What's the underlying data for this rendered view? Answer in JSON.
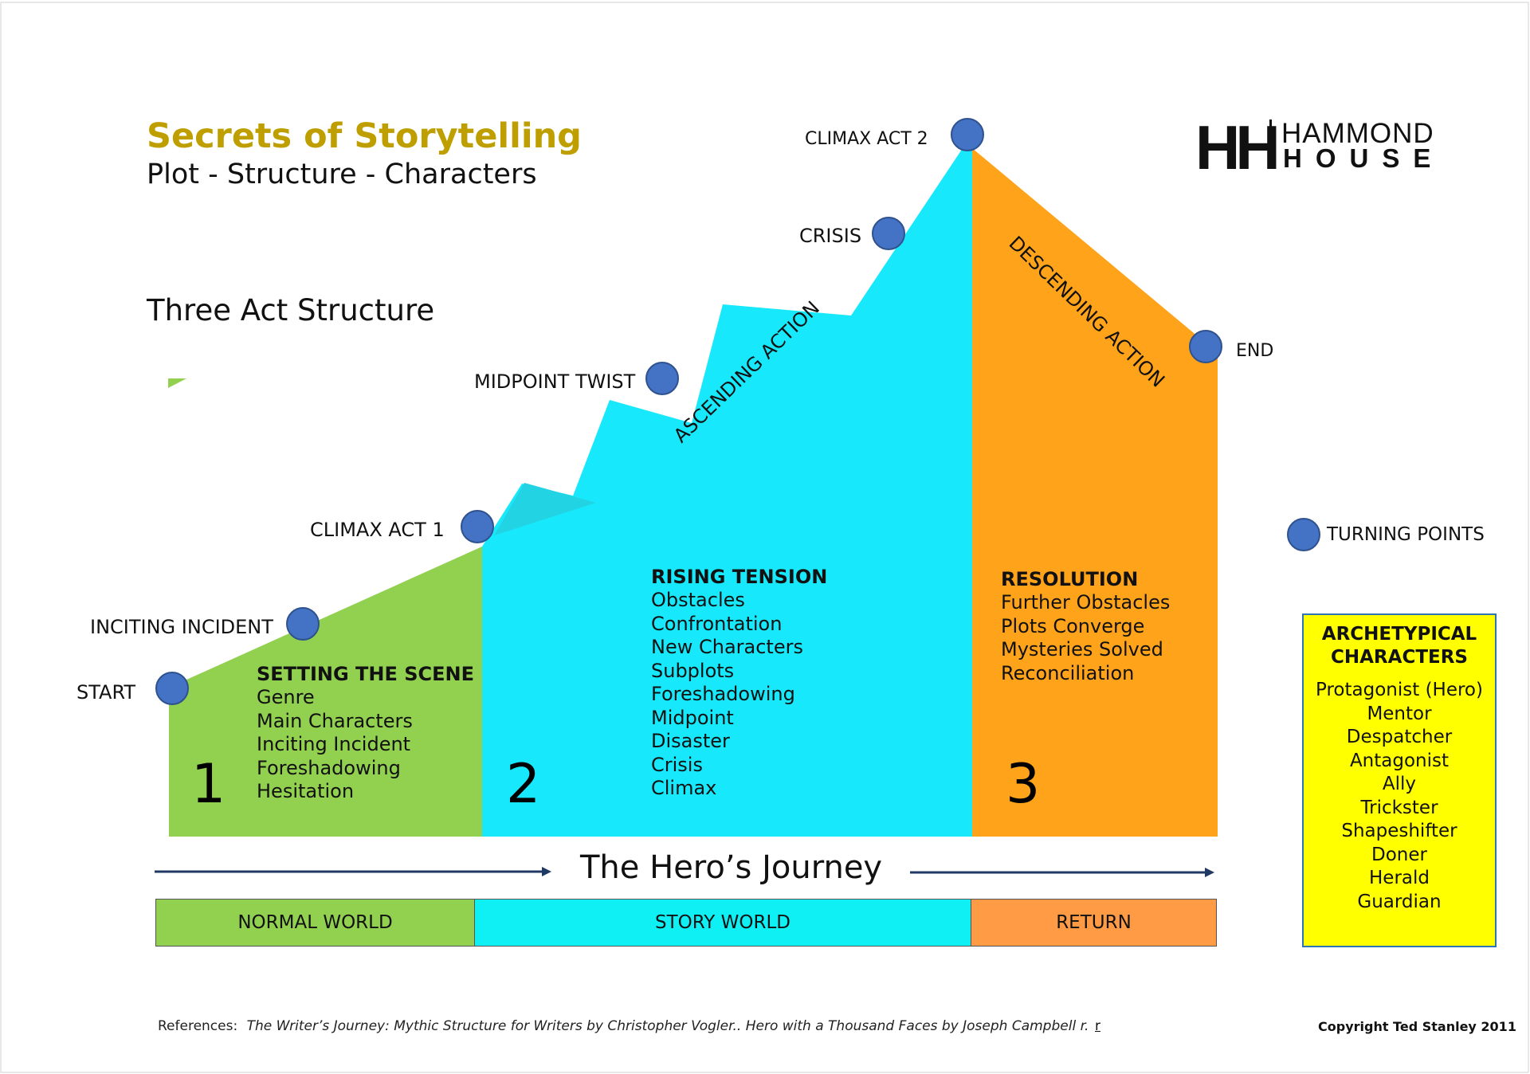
{
  "header": {
    "title": "Secrets of Storytelling",
    "subtitle": "Plot - Structure - Characters",
    "section_label": "Three Act Structure"
  },
  "logo": {
    "monogram": "HH",
    "line1": "HAMMOND",
    "line2": "HOUSE"
  },
  "turning_points": {
    "start": "START",
    "inciting_incident": "INCITING INCIDENT",
    "climax_act_1": "CLIMAX ACT 1",
    "midpoint_twist": "MIDPOINT TWIST",
    "crisis": "CRISIS",
    "climax_act_2": "CLIMAX ACT 2",
    "end": "END"
  },
  "diagonal_labels": {
    "ascending": "ASCENDING ACTION",
    "descending": "DESCENDING ACTION"
  },
  "acts": [
    {
      "number": "1",
      "heading": "SETTING THE SCENE",
      "items": [
        "Genre",
        "Main Characters",
        "Inciting Incident",
        "Foreshadowing",
        "Hesitation"
      ],
      "color": "#92d050"
    },
    {
      "number": "2",
      "heading": "RISING TENSION",
      "items": [
        "Obstacles",
        "Confrontation",
        "New Characters",
        "Subplots",
        "Foreshadowing",
        "Midpoint",
        "Disaster",
        "Crisis",
        "Climax"
      ],
      "color": "#17e8fb"
    },
    {
      "number": "3",
      "heading": "RESOLUTION",
      "items": [
        "Further Obstacles",
        "Plots Converge",
        "Mysteries Solved",
        "Reconciliation"
      ],
      "color": "#ffa31a"
    }
  ],
  "legend": {
    "turning_points_label": "TURNING POINTS",
    "marker_color": "#4472c4"
  },
  "archetypes": {
    "title_line1": "ARCHETYPICAL",
    "title_line2": "CHARACTERS",
    "items": [
      "Protagonist (Hero)",
      "Mentor",
      "Despatcher",
      "Antagonist",
      "Ally",
      "Trickster",
      "Shapeshifter",
      "Doner",
      "Herald",
      "Guardian"
    ],
    "background": "#ffff00",
    "border": "#2e75b6"
  },
  "journey": {
    "title": "The Hero’s Journey",
    "bands": [
      {
        "label": "NORMAL WORLD",
        "color": "#92d050"
      },
      {
        "label": "STORY WORLD",
        "color": "#0ff0f5"
      },
      {
        "label": "RETURN",
        "color": "#ff9a45"
      }
    ]
  },
  "footer": {
    "references_label": "References:",
    "references_text": "The Writer’s Journey: Mythic Structure for Writers by Christopher Vogler..  Hero with a Thousand Faces by Joseph Campbell r.",
    "stray_mark": "r",
    "copyright": "Copyright Ted Stanley 2011"
  }
}
